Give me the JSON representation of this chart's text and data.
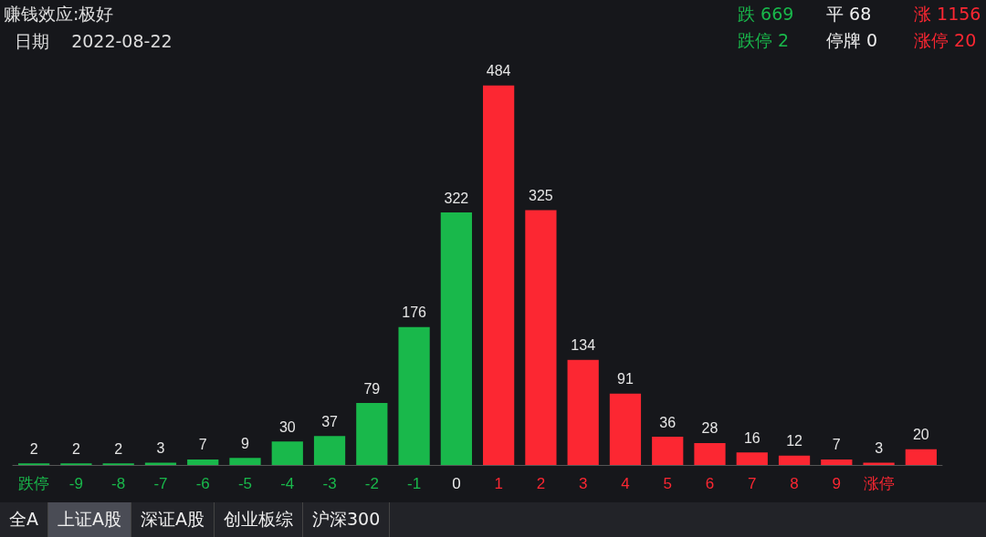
{
  "chart_data": {
    "type": "bar",
    "title": "赚钱效应:极好",
    "subtitle": "日期    2022-08-22",
    "categories": [
      "跌停",
      "-9",
      "-8",
      "-7",
      "-6",
      "-5",
      "-4",
      "-3",
      "-2",
      "-1",
      "0",
      "1",
      "2",
      "3",
      "4",
      "5",
      "6",
      "7",
      "8",
      "9",
      "涨停",
      null
    ],
    "values": [
      2,
      2,
      2,
      3,
      7,
      9,
      30,
      37,
      79,
      176,
      322,
      484,
      325,
      134,
      91,
      36,
      28,
      16,
      12,
      7,
      3,
      20
    ],
    "colors": [
      "#19b84b",
      "#19b84b",
      "#19b84b",
      "#19b84b",
      "#19b84b",
      "#19b84b",
      "#19b84b",
      "#19b84b",
      "#19b84b",
      "#19b84b",
      "#19b84b",
      "#fc2732",
      "#fc2732",
      "#fc2732",
      "#fc2732",
      "#fc2732",
      "#fc2732",
      "#fc2732",
      "#fc2732",
      "#fc2732",
      "#fc2732",
      "#fc2732"
    ],
    "data_labels": true,
    "annotations": [
      "跌 669",
      "平 68",
      "涨 1156",
      "跌停 2",
      "停牌 0",
      "涨停 20",
      "全A",
      "上证A股",
      "深证A股",
      "创业板综",
      "沪深300"
    ]
  }
}
